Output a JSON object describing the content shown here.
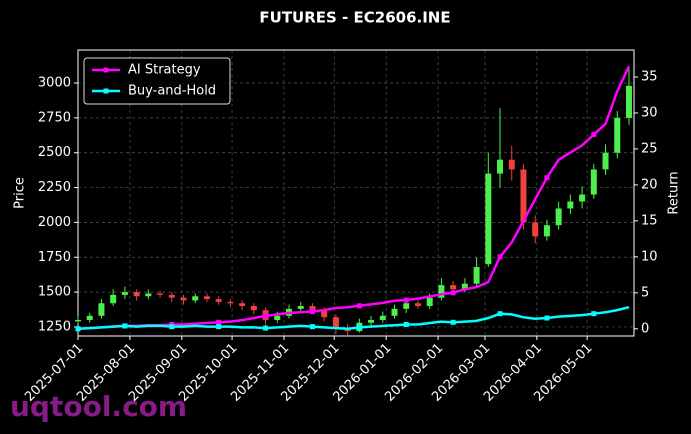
{
  "chart_data": {
    "type": "candlestick",
    "title": "FUTURES - EC2606.INE",
    "y_label": "Price",
    "y2_label": "Return",
    "watermark": "uqtool.com",
    "x": [
      "2025-07-01",
      "2025-07-08",
      "2025-07-15",
      "2025-07-22",
      "2025-07-29",
      "2025-08-05",
      "2025-08-12",
      "2025-08-19",
      "2025-08-26",
      "2025-09-02",
      "2025-09-09",
      "2025-09-16",
      "2025-09-23",
      "2025-09-30",
      "2025-10-07",
      "2025-10-14",
      "2025-10-21",
      "2025-10-28",
      "2025-11-04",
      "2025-11-11",
      "2025-11-18",
      "2025-11-25",
      "2025-12-02",
      "2025-12-09",
      "2025-12-16",
      "2025-12-23",
      "2025-12-30",
      "2026-01-06",
      "2026-01-13",
      "2026-01-20",
      "2026-01-27",
      "2026-02-03",
      "2026-02-10",
      "2026-02-17",
      "2026-02-24",
      "2026-03-03",
      "2026-03-10",
      "2026-03-17",
      "2026-03-24",
      "2026-03-31",
      "2026-04-07",
      "2026-04-14",
      "2026-04-21",
      "2026-04-28",
      "2026-05-05",
      "2026-05-12",
      "2026-05-19",
      "2026-05-26"
    ],
    "open": [
      1290,
      1300,
      1330,
      1420,
      1480,
      1500,
      1470,
      1490,
      1480,
      1460,
      1440,
      1470,
      1450,
      1430,
      1420,
      1400,
      1370,
      1300,
      1330,
      1380,
      1400,
      1370,
      1320,
      1240,
      1220,
      1280,
      1300,
      1330,
      1380,
      1420,
      1400,
      1460,
      1550,
      1520,
      1560,
      1700,
      2350,
      2450,
      2380,
      2000,
      1900,
      1980,
      2100,
      2150,
      2200,
      2380,
      2500,
      2750
    ],
    "high": [
      1330,
      1350,
      1450,
      1520,
      1540,
      1520,
      1520,
      1510,
      1500,
      1480,
      1490,
      1490,
      1470,
      1450,
      1440,
      1420,
      1390,
      1360,
      1410,
      1430,
      1420,
      1390,
      1340,
      1270,
      1310,
      1330,
      1360,
      1410,
      1450,
      1440,
      1490,
      1600,
      1580,
      1600,
      1750,
      2500,
      2820,
      2550,
      2420,
      2050,
      2020,
      2150,
      2200,
      2260,
      2420,
      2560,
      2800,
      3100
    ],
    "low": [
      1270,
      1280,
      1310,
      1400,
      1450,
      1440,
      1450,
      1460,
      1430,
      1410,
      1420,
      1430,
      1410,
      1390,
      1370,
      1340,
      1260,
      1280,
      1310,
      1360,
      1340,
      1290,
      1200,
      1190,
      1210,
      1260,
      1280,
      1310,
      1350,
      1380,
      1380,
      1440,
      1490,
      1500,
      1530,
      1680,
      2250,
      2300,
      1950,
      1850,
      1870,
      1950,
      2060,
      2100,
      2170,
      2340,
      2460,
      2700
    ],
    "close": [
      1300,
      1330,
      1420,
      1480,
      1500,
      1470,
      1490,
      1480,
      1460,
      1440,
      1470,
      1450,
      1430,
      1420,
      1400,
      1370,
      1300,
      1330,
      1380,
      1400,
      1370,
      1320,
      1240,
      1220,
      1280,
      1300,
      1330,
      1380,
      1420,
      1400,
      1460,
      1550,
      1520,
      1560,
      1680,
      2350,
      2450,
      2380,
      2000,
      1900,
      1980,
      2100,
      2150,
      2200,
      2380,
      2500,
      2750,
      2980
    ],
    "up_color": "#4cf04c",
    "down_color": "#f04040",
    "series": [
      {
        "name": "AI Strategy",
        "color": "#ff00ff",
        "axis": "y2",
        "values": [
          0,
          0.1,
          0.2,
          0.3,
          0.4,
          0.4,
          0.5,
          0.5,
          0.6,
          0.6,
          0.7,
          0.8,
          0.9,
          1.0,
          1.2,
          1.5,
          1.8,
          2.0,
          2.2,
          2.3,
          2.4,
          2.6,
          2.9,
          3.0,
          3.2,
          3.4,
          3.6,
          3.9,
          4.0,
          4.2,
          4.5,
          4.8,
          5.0,
          5.5,
          5.8,
          6.5,
          10,
          12,
          15,
          18,
          21,
          23.5,
          24.5,
          25.5,
          27,
          28.5,
          33,
          36.5
        ]
      },
      {
        "name": "Buy-and-Hold",
        "color": "#00ffff",
        "axis": "y2",
        "values": [
          0,
          0.1,
          0.2,
          0.3,
          0.4,
          0.3,
          0.4,
          0.4,
          0.3,
          0.3,
          0.4,
          0.3,
          0.3,
          0.3,
          0.2,
          0.2,
          0.1,
          0.2,
          0.3,
          0.4,
          0.3,
          0.2,
          0.1,
          0.0,
          0.2,
          0.3,
          0.4,
          0.5,
          0.6,
          0.6,
          0.8,
          1.0,
          0.9,
          1.0,
          1.1,
          1.5,
          2.1,
          2.0,
          1.6,
          1.4,
          1.5,
          1.7,
          1.8,
          1.9,
          2.1,
          2.3,
          2.6,
          3.0
        ]
      }
    ],
    "xlim": [
      "2025-07-01",
      "2026-05-29"
    ],
    "xticks": [
      "2025-07-01",
      "2025-08-01",
      "2025-09-01",
      "2025-10-01",
      "2025-11-01",
      "2025-12-01",
      "2026-01-01",
      "2026-02-01",
      "2026-03-01",
      "2026-04-01",
      "2026-05-01"
    ],
    "ylim": [
      1185,
      3237
    ],
    "yticks": [
      1250,
      1500,
      1750,
      2000,
      2250,
      2500,
      2750,
      3000
    ],
    "y2lim": [
      -1,
      38.75
    ],
    "y2ticks": [
      0,
      5,
      10,
      15,
      20,
      25,
      30,
      35
    ],
    "grid": true,
    "legend": "upper left"
  }
}
